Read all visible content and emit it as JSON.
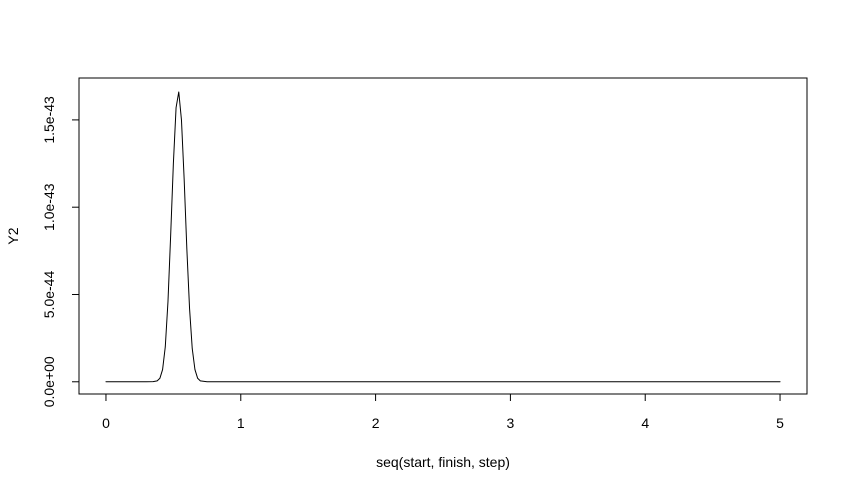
{
  "chart_data": {
    "type": "line",
    "title": "",
    "xlabel": "seq(start, finish, step)",
    "ylabel": "Y2",
    "xlim": [
      -0.2,
      5.2
    ],
    "ylim": [
      -7e-45,
      1.74e-43
    ],
    "x_ticks": [
      0,
      1,
      2,
      3,
      4,
      5
    ],
    "x_tick_labels": [
      "0",
      "1",
      "2",
      "3",
      "4",
      "5"
    ],
    "y_ticks": [
      0,
      5e-44,
      1e-43,
      1.5e-43
    ],
    "y_tick_labels": [
      "0.0e+00",
      "5.0e-44",
      "1.0e-43",
      "1.5e-43"
    ],
    "grid": false,
    "legend": "none",
    "series": [
      {
        "color": "#000000",
        "x": [
          0,
          0.05,
          0.1,
          0.15,
          0.2,
          0.25,
          0.3,
          0.35,
          0.38,
          0.4,
          0.42,
          0.44,
          0.46,
          0.48,
          0.5,
          0.52,
          0.54,
          0.56,
          0.58,
          0.6,
          0.62,
          0.64,
          0.66,
          0.68,
          0.7,
          0.75,
          0.8,
          0.9,
          1.0,
          1.5,
          2.0,
          2.5,
          3.0,
          3.5,
          4.0,
          4.5,
          5.0
        ],
        "y": [
          0,
          0,
          0,
          0,
          0,
          0,
          0,
          1e-46,
          5e-46,
          2e-45,
          7e-45,
          2e-44,
          4.6e-44,
          8.4e-44,
          1.25e-43,
          1.57e-43,
          1.66e-43,
          1.5e-43,
          1.16e-43,
          7.6e-44,
          4.2e-44,
          1.9e-44,
          7e-45,
          2e-45,
          5e-46,
          2e-47,
          0,
          0,
          0,
          0,
          0,
          0,
          0,
          0,
          0,
          0,
          0
        ]
      }
    ]
  }
}
